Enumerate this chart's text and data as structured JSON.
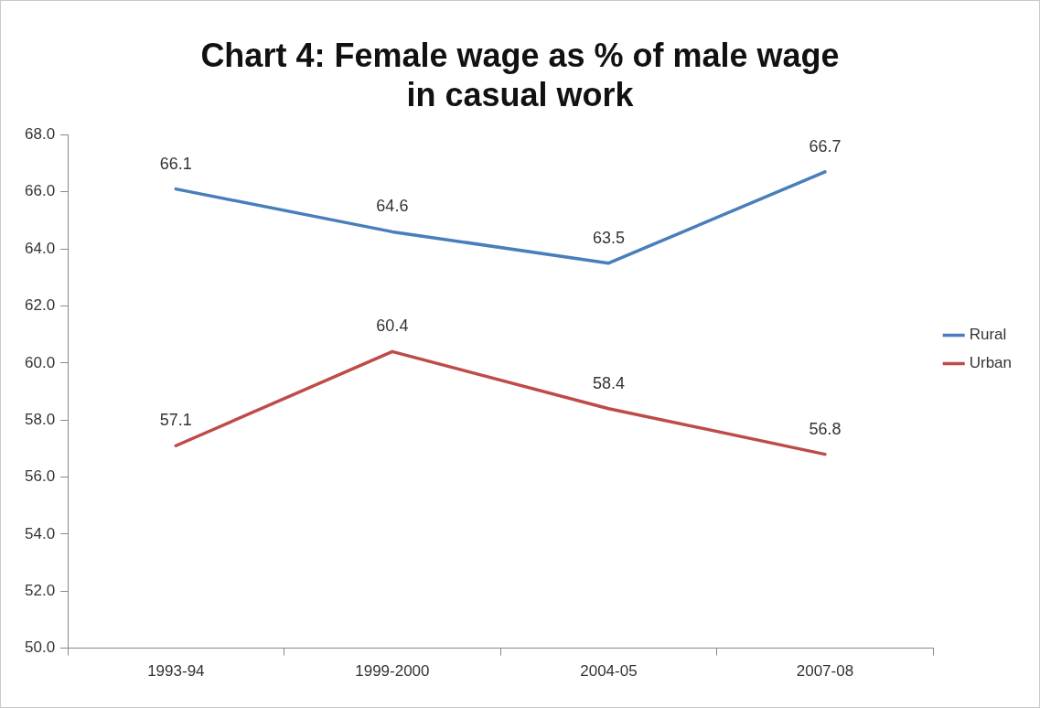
{
  "chart_data": {
    "type": "line",
    "title": "Chart 4: Female wage as % of male wage\nin casual work",
    "categories": [
      "1993-94",
      "1999-2000",
      "2004-05",
      "2007-08"
    ],
    "series": [
      {
        "name": "Rural",
        "color": "#4a7ebb",
        "values": [
          66.1,
          64.6,
          63.5,
          66.7
        ]
      },
      {
        "name": "Urban",
        "color": "#be4b48",
        "values": [
          57.1,
          60.4,
          58.4,
          56.8
        ]
      }
    ],
    "ylim": [
      50,
      68
    ],
    "yticks": [
      {
        "value": 50,
        "label": "50.0"
      },
      {
        "value": 52,
        "label": "52.0"
      },
      {
        "value": 54,
        "label": "54.0"
      },
      {
        "value": 56,
        "label": "56.0"
      },
      {
        "value": 58,
        "label": "58.0"
      },
      {
        "value": 60,
        "label": "60.0"
      },
      {
        "value": 62,
        "label": "62.0"
      },
      {
        "value": 64,
        "label": "64.0"
      },
      {
        "value": 66,
        "label": "66.0"
      },
      {
        "value": 68,
        "label": "68.0"
      }
    ],
    "grid": false,
    "legend": "right",
    "marker": "none",
    "line_style": "solid",
    "data_labels": true
  }
}
